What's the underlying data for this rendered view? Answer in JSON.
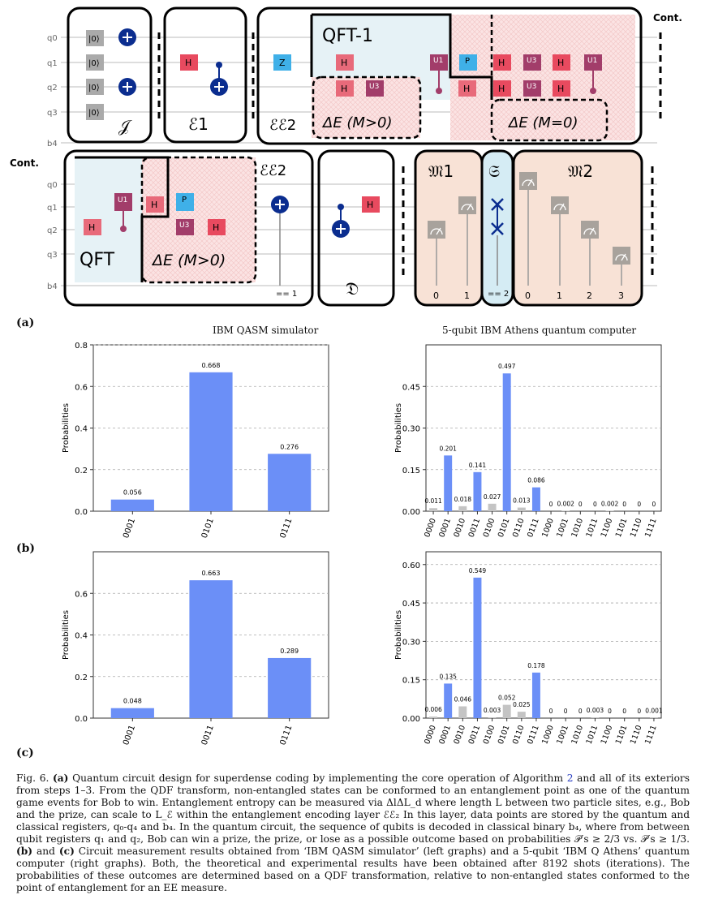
{
  "circuit": {
    "cont_top": "Cont.",
    "cont_left": "Cont.",
    "qubits_top": [
      "q0",
      "q1",
      "q2",
      "q3",
      "b4"
    ],
    "qubits_bottom": [
      "q0",
      "q1",
      "q2",
      "q3",
      "b4"
    ],
    "ket": "|0⟩",
    "gate_h": "H",
    "gate_z": "Z",
    "gate_p": "P",
    "gate_u1": "U1",
    "gate_u3": "U3",
    "label_I": "𝒥",
    "label_E1": "ℰ1",
    "label_EE2": "ℰℰ2",
    "label_QFTinv": "QFT-1",
    "label_dE_pos": "ΔE (M>0)",
    "label_dE_zero": "ΔE (M=0)",
    "label_QFT": "QFT",
    "label_D": "𝔇",
    "label_M1": "𝔐1",
    "label_S": "𝔖",
    "label_M2": "𝔐2",
    "eq1": "== 1",
    "eq2": "== 2",
    "m1_outs": [
      "0",
      "1"
    ],
    "m2_outs": [
      "0",
      "1",
      "2",
      "3"
    ],
    "panel_a": "(a)"
  },
  "panel_b": "(b)",
  "panel_c": "(c)",
  "title_left": "IBM QASM simulator",
  "title_right": "5-qubit IBM Athens quantum computer",
  "colors": {
    "bar_blue": "#6b8ff7",
    "bar_grey": "#c4c4c4",
    "red_gate": "#e84a5f",
    "z_gate": "#3fb0e8"
  },
  "chart_data": [
    {
      "type": "bar",
      "ylabel": "Probabilities",
      "categories": [
        "0001",
        "0101",
        "0111"
      ],
      "values": [
        0.056,
        0.668,
        0.276
      ],
      "labels": [
        "0.056",
        "0.668",
        "0.276"
      ],
      "ylim": [
        0,
        0.8
      ],
      "yticks": [
        "0.0",
        "0.2",
        "0.4",
        "0.6",
        "0.8"
      ],
      "grid": true
    },
    {
      "type": "bar",
      "ylabel": "Probabilities",
      "categories": [
        "0000",
        "0001",
        "0010",
        "0011",
        "0100",
        "0101",
        "0110",
        "0111",
        "1000",
        "1001",
        "1010",
        "1011",
        "1100",
        "1101",
        "1110",
        "1111"
      ],
      "values": [
        0.011,
        0.201,
        0.018,
        0.141,
        0.027,
        0.497,
        0.013,
        0.086,
        0,
        0.002,
        0,
        0,
        0.002,
        0,
        0,
        0
      ],
      "labels": [
        "0.011",
        "0.201",
        "0.018",
        "0.141",
        "0.027",
        "0.497",
        "0.013",
        "0.086",
        "0",
        "0.002",
        "0",
        "0",
        "0.002",
        "0",
        "0",
        "0"
      ],
      "highlight": [
        "0001",
        "0011",
        "0101",
        "0111"
      ],
      "ylim": [
        0,
        0.6
      ],
      "yticks": [
        "0.00",
        "0.15",
        "0.30",
        "0.45"
      ],
      "grid": true
    },
    {
      "type": "bar",
      "ylabel": "Probabilities",
      "categories": [
        "0001",
        "0011",
        "0111"
      ],
      "values": [
        0.048,
        0.663,
        0.289
      ],
      "labels": [
        "0.048",
        "0.663",
        "0.289"
      ],
      "ylim": [
        0,
        0.8
      ],
      "yticks": [
        "0.0",
        "0.2",
        "0.4",
        "0.6"
      ],
      "grid": true
    },
    {
      "type": "bar",
      "ylabel": "Probabilities",
      "categories": [
        "0000",
        "0001",
        "0010",
        "0011",
        "0100",
        "0101",
        "0110",
        "0111",
        "1000",
        "1001",
        "1010",
        "1011",
        "1100",
        "1101",
        "1110",
        "1111"
      ],
      "values": [
        0.006,
        0.135,
        0.046,
        0.549,
        0.003,
        0.052,
        0.025,
        0.178,
        0,
        0,
        0,
        0.003,
        0,
        0,
        0,
        0.001
      ],
      "labels": [
        "0.006",
        "0.135",
        "0.046",
        "0.549",
        "0.003",
        "0.052",
        "0.025",
        "0.178",
        "0",
        "0",
        "0",
        "0.003",
        "0",
        "0",
        "0",
        "0.001"
      ],
      "highlight": [
        "0001",
        "0011",
        "0111"
      ],
      "ylim": [
        0,
        0.65
      ],
      "yticks": [
        "0.00",
        "0.15",
        "0.30",
        "0.45",
        "0.60"
      ],
      "grid": true
    }
  ],
  "caption": {
    "fig": "Fig. 6.",
    "bold_a": "(a)",
    "text1": " Quantum circuit design for superdense coding by implementing the core operation of Algorithm ",
    "alg": "2",
    "text2": " and all of its exteriors from steps 1–3. From the QDF transform, non-entangled states can be conformed to an entanglement point as one of the quantum game events for Bob to win. Entanglement entropy can be measured via ΔlΔL_d                 where length L between two particle sites, e.g., Bob and the prize, can scale to L_ℰ within the entanglement encoding layer ℰℰ₂                       In this layer, data points are stored by the quantum and classical registers, q₀-q₄ and b₄. In the quantum circuit, the sequence of qubits is decoded in classical binary b₄, where from between qubit registers q₁ and q₂, Bob can win a prize, the prize, or lose as a possible outcome based on probabilities 𝒫′s ≥ 2/3 vs. 𝒫′s ≥ 1/3. ",
    "bold_bc": "(b)",
    "text3": " and ",
    "bold_c": "(c)",
    "text4": " Circuit measurement results obtained from ‘IBM QASM simulator’ (left graphs) and a 5-qubit ‘IBM Q Athens’ quantum computer (right graphs). Both, the theoretical and experimental results have been obtained after 8192 shots (iterations). The probabilities of these outcomes are determined based on a QDF transformation, relative to non-entangled states conformed to the point of entanglement for an EE measure."
  }
}
